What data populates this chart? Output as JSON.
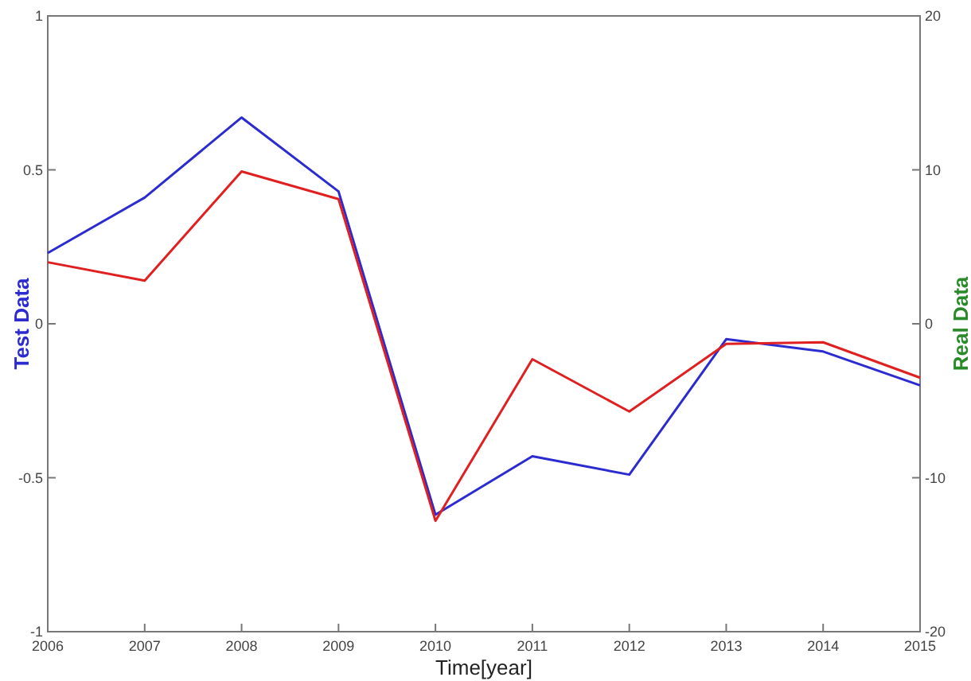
{
  "chart_data": {
    "type": "line",
    "xlabel": "Time[year]",
    "ylabel": "Test Data",
    "y2label": "Real Data",
    "x": [
      2006,
      2007,
      2008,
      2009,
      2010,
      2011,
      2012,
      2013,
      2014,
      2015
    ],
    "xlim": [
      2006,
      2015
    ],
    "xticks": [
      2006,
      2007,
      2008,
      2009,
      2010,
      2011,
      2012,
      2013,
      2014,
      2015
    ],
    "ylim": [
      -1,
      1
    ],
    "yticks": [
      -1,
      -0.5,
      0,
      0.5,
      1
    ],
    "y2lim": [
      -20,
      20
    ],
    "y2ticks": [
      -20,
      -10,
      0,
      10,
      20
    ],
    "grid": false,
    "series": [
      {
        "color": "#2b2bd0",
        "values": [
          0.23,
          0.41,
          0.67,
          0.43,
          -0.62,
          -0.43,
          -0.49,
          -0.05,
          -0.09,
          -0.2
        ]
      },
      {
        "color": "#e02020",
        "axis": "y2",
        "values": [
          4.0,
          2.8,
          9.9,
          8.1,
          -12.8,
          -2.3,
          -5.7,
          -1.3,
          -1.2,
          -3.5
        ]
      }
    ]
  }
}
